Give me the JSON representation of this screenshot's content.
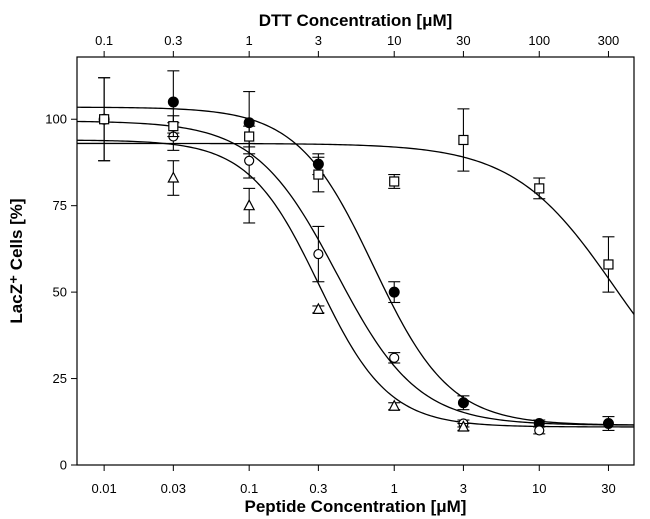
{
  "chart_data": {
    "type": "scatter",
    "x_scale": "log",
    "xlabel": "Peptide Concentration [μM]",
    "x2label": "DTT Concentration [μM]",
    "ylabel": "LacZ⁺ Cells [%]",
    "xlim": [
      0.0065,
      45
    ],
    "x2lim": [
      0.065,
      450
    ],
    "ylim": [
      0,
      118
    ],
    "x_ticks": [
      0.01,
      0.03,
      0.1,
      0.3,
      1,
      3,
      10,
      30
    ],
    "x_tick_labels": [
      "0.01",
      "0.03",
      "0.1",
      "0.3",
      "1",
      "3",
      "10",
      "30"
    ],
    "x2_ticks": [
      0.1,
      0.3,
      1,
      3,
      10,
      30,
      100,
      300
    ],
    "x2_tick_labels": [
      "0.1",
      "0.3",
      "1",
      "3",
      "10",
      "30",
      "100",
      "300"
    ],
    "y_ticks": [
      0,
      25,
      50,
      75,
      100
    ],
    "y_tick_labels": [
      "0",
      "25",
      "50",
      "75",
      "100"
    ],
    "grid": false,
    "colors": {
      "line": "#000000",
      "fill_marker": "#000000",
      "open_marker": "#ffffff"
    },
    "series": [
      {
        "marker": "filled-circle",
        "x": [
          0.01,
          0.03,
          0.1,
          0.3,
          1,
          3,
          10,
          30
        ],
        "y": [
          100,
          105,
          99,
          87,
          50,
          18,
          12,
          12
        ],
        "err": [
          12,
          9,
          9,
          3,
          3,
          2,
          1,
          2
        ],
        "fit": {
          "top": 103.5,
          "bottom": 11.5,
          "ec50": 0.72,
          "hill": 1.65
        }
      },
      {
        "marker": "open-circle",
        "x": [
          0.03,
          0.1,
          0.3,
          1,
          3,
          10
        ],
        "y": [
          95,
          88,
          61,
          31,
          12,
          10
        ],
        "err": [
          4,
          5,
          8,
          1.5,
          1,
          1
        ],
        "fit": {
          "top": 99.5,
          "bottom": 11.5,
          "ec50": 0.4,
          "hill": 1.55
        }
      },
      {
        "marker": "open-triangle",
        "x": [
          0.03,
          0.1,
          0.3,
          1,
          3
        ],
        "y": [
          83,
          75,
          45,
          17,
          11
        ],
        "err": [
          5,
          5,
          1,
          1,
          1
        ],
        "fit": {
          "top": 94,
          "bottom": 11,
          "ec50": 0.3,
          "hill": 1.8
        }
      },
      {
        "marker": "open-square",
        "axis": "top",
        "x": [
          0.1,
          0.3,
          1,
          3,
          10,
          30,
          100,
          300
        ],
        "y": [
          100,
          98,
          95,
          84,
          82,
          94,
          80,
          58
        ],
        "err": [
          12,
          3,
          3,
          5,
          2,
          9,
          3,
          8
        ],
        "fit": {
          "top": 93,
          "bottom": 10,
          "ec50": 330,
          "hill": 1.25
        }
      }
    ]
  }
}
